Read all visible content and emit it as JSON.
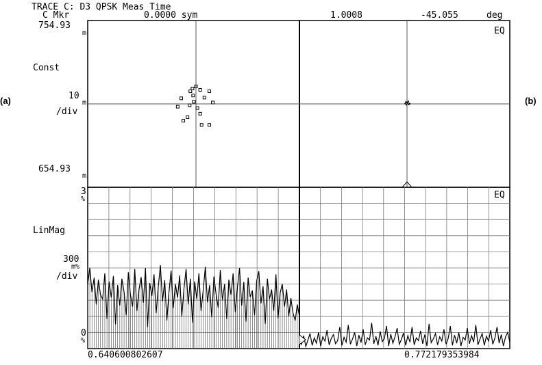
{
  "header": {
    "trace_title": "TRACE C: D3 QPSK Meas Time",
    "marker_label": "C Mkr",
    "marker_value": "0.0000 sym",
    "marker_mag": "1.0008",
    "marker_phase": "-45.055",
    "marker_unit": "deg"
  },
  "figure_labels": {
    "left": "(a)",
    "right": "(b)"
  },
  "constellation": {
    "top_value": "754.93",
    "top_unit": "m",
    "format": "Const",
    "scale_value": "10",
    "scale_unit": "m",
    "per_div": "/div",
    "bottom_value": "654.93",
    "bottom_unit": "m",
    "eq_label": "EQ"
  },
  "linmag": {
    "top_value": "3",
    "top_unit": "%",
    "format": "LinMag",
    "scale_value": "300",
    "scale_unit": "m%",
    "per_div": "/div",
    "bottom_value": "0",
    "bottom_unit": "%",
    "eq_label": "EQ",
    "x_start": "0.640600802607",
    "x_stop": "0.772179353984"
  },
  "chart_data": [
    {
      "type": "scatter",
      "format": "Const",
      "ylim": [
        654.93,
        754.93
      ],
      "scale_per_div": 10,
      "left_points": [
        [
          0,
          2.5
        ],
        [
          -0.8,
          1.8
        ],
        [
          -0.5,
          2.2
        ],
        [
          0.6,
          2
        ],
        [
          1.9,
          1.8
        ],
        [
          -0.4,
          1.2
        ],
        [
          1.2,
          0.9
        ],
        [
          -2.1,
          0.8
        ],
        [
          -0.3,
          0.3
        ],
        [
          2.4,
          0.2
        ],
        [
          0.2,
          -0.6
        ],
        [
          -0.9,
          -0.2
        ],
        [
          -2.6,
          -0.4
        ],
        [
          0.6,
          -1.4
        ],
        [
          -1.2,
          -1.9
        ],
        [
          -1.8,
          -2.4
        ],
        [
          0.8,
          -3
        ],
        [
          1.9,
          -3
        ]
      ],
      "right_points": [
        [
          0,
          0.4
        ],
        [
          0.3,
          0.3
        ],
        [
          -0.4,
          0.6
        ],
        [
          0.6,
          -0.2
        ],
        [
          -0.2,
          -0.3
        ],
        [
          0.4,
          0.8
        ],
        [
          0.9,
          0.1
        ],
        [
          -0.6,
          0.1
        ]
      ]
    },
    {
      "type": "line",
      "format": "LinMag",
      "ylim": [
        0,
        3
      ],
      "y_unit": "%",
      "scale_per_div": "300 m%",
      "x_range": [
        "0.640600802607",
        "0.772179353984"
      ],
      "left_values": [
        1.2,
        1.5,
        1.05,
        1.32,
        0.82,
        1.28,
        1.0,
        0.92,
        1.4,
        0.55,
        1.25,
        0.95,
        1.35,
        0.45,
        1.18,
        0.8,
        1.3,
        1.05,
        0.62,
        1.42,
        1.0,
        0.78,
        1.48,
        0.7,
        1.1,
        1.33,
        0.85,
        1.5,
        0.4,
        1.22,
        0.98,
        1.38,
        0.66,
        1.15,
        1.55,
        0.88,
        1.27,
        0.52,
        1.05,
        1.45,
        0.75,
        1.2,
        0.95,
        1.36,
        0.6,
        1.12,
        1.48,
        0.82,
        1.3,
        0.48,
        1.25,
        0.92,
        1.4,
        0.7,
        1.08,
        1.52,
        0.86,
        1.18,
        0.58,
        1.34,
        1.02,
        0.76,
        1.46,
        0.9,
        1.2,
        0.55,
        1.28,
        1.0,
        1.4,
        0.68,
        1.14,
        1.5,
        0.8,
        1.24,
        0.5,
        1.32,
        0.96,
        1.08,
        0.62,
        1.26,
        1.44,
        0.84,
        1.16,
        0.46,
        1.3,
        0.92,
        1.1,
        0.7,
        1.38,
        0.56,
        1.04,
        1.2,
        0.78,
        1.1,
        0.6,
        0.94,
        0.66,
        0.52,
        0.82,
        0.6
      ],
      "right_values": [
        0.18,
        0.08,
        0.24,
        0.04,
        0.16,
        0.28,
        0.06,
        0.2,
        0.1,
        0.3,
        0.05,
        0.22,
        0.14,
        0.34,
        0.07,
        0.19,
        0.26,
        0.09,
        0.15,
        0.4,
        0.06,
        0.21,
        0.12,
        0.44,
        0.08,
        0.18,
        0.3,
        0.05,
        0.25,
        0.11,
        0.36,
        0.07,
        0.2,
        0.16,
        0.48,
        0.09,
        0.23,
        0.06,
        0.32,
        0.13,
        0.19,
        0.42,
        0.05,
        0.27,
        0.1,
        0.22,
        0.38,
        0.08,
        0.17,
        0.29,
        0.06,
        0.24,
        0.12,
        0.4,
        0.07,
        0.2,
        0.15,
        0.33,
        0.09,
        0.26,
        0.05,
        0.46,
        0.11,
        0.18,
        0.28,
        0.07,
        0.22,
        0.14,
        0.36,
        0.08,
        0.19,
        0.42,
        0.06,
        0.25,
        0.1,
        0.3,
        0.05,
        0.21,
        0.16,
        0.38,
        0.09,
        0.24,
        0.12,
        0.44,
        0.07,
        0.18,
        0.28,
        0.06,
        0.23,
        0.14,
        0.34,
        0.08,
        0.2,
        0.4,
        0.1,
        0.26,
        0.05,
        0.22,
        0.3,
        0.12
      ]
    }
  ]
}
